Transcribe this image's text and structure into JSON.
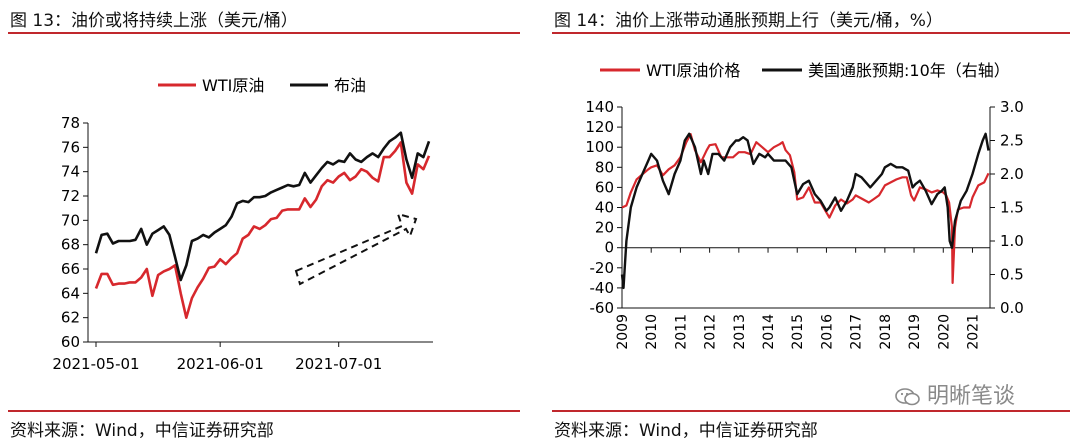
{
  "left_panel": {
    "title": "图 13：油价或将持续上涨（美元/桶）",
    "source": "资料来源：Wind，中信证券研究部"
  },
  "right_panel": {
    "title": "图 14：油价上涨带动通胀预期上行（美元/桶，%）",
    "source": "资料来源：Wind，中信证券研究部"
  },
  "watermark": {
    "text": "明晰笔谈",
    "icon": "wechat-icon"
  },
  "colors": {
    "wti": "#d7282d",
    "brent": "#111111",
    "rule": "#c0282d",
    "arrow": "#111111"
  },
  "chart_data": [
    {
      "type": "line",
      "legend_position": "top",
      "x_tick_labels": [
        "2021-05-01",
        "2021-06-01",
        "2021-07-01"
      ],
      "ylim": [
        60,
        78
      ],
      "y_ticks": [
        60,
        62,
        64,
        66,
        68,
        70,
        72,
        74,
        76,
        78
      ],
      "x_count": 60,
      "x_tick_index": [
        0,
        22,
        43
      ],
      "annotations": [
        "dashed-upward-arrow"
      ],
      "series": [
        {
          "name": "WTI原油",
          "color": "#d7282d",
          "values": [
            64.4,
            65.6,
            65.6,
            64.7,
            64.8,
            64.8,
            64.9,
            64.9,
            65.3,
            66.0,
            63.8,
            65.5,
            65.8,
            66.0,
            66.3,
            64.0,
            62.0,
            63.6,
            64.5,
            65.2,
            66.1,
            66.2,
            66.8,
            66.4,
            66.9,
            67.3,
            68.5,
            68.8,
            69.5,
            69.3,
            69.6,
            70.1,
            70.2,
            70.8,
            70.9,
            70.9,
            70.9,
            71.8,
            71.1,
            71.7,
            72.8,
            73.3,
            73.1,
            73.6,
            73.9,
            73.3,
            73.6,
            74.2,
            74.0,
            73.5,
            73.2,
            75.2,
            75.2,
            75.7,
            76.4,
            73.1,
            72.2,
            74.6,
            74.2,
            75.3
          ]
        },
        {
          "name": "布油",
          "color": "#111111",
          "values": [
            67.3,
            68.8,
            68.9,
            68.1,
            68.3,
            68.3,
            68.3,
            68.4,
            69.3,
            68.0,
            68.9,
            69.2,
            69.5,
            68.8,
            67.0,
            65.1,
            66.3,
            68.3,
            68.5,
            68.8,
            68.6,
            69.0,
            69.3,
            69.6,
            70.3,
            71.4,
            71.6,
            71.5,
            71.9,
            71.9,
            72.0,
            72.3,
            72.5,
            72.7,
            72.9,
            72.8,
            72.9,
            73.9,
            73.1,
            73.7,
            74.3,
            74.8,
            74.6,
            74.9,
            74.8,
            75.5,
            75.0,
            74.8,
            75.2,
            75.5,
            75.2,
            75.9,
            76.5,
            76.8,
            77.2,
            75.0,
            73.5,
            75.5,
            75.2,
            76.5
          ]
        }
      ]
    },
    {
      "type": "line",
      "legend_position": "top",
      "x_tick_labels": [
        "2009",
        "2010",
        "2011",
        "2012",
        "2013",
        "2014",
        "2015",
        "2016",
        "2017",
        "2018",
        "2019",
        "2020",
        "2021"
      ],
      "xlim": [
        2009,
        2021.6
      ],
      "ylim": [
        -60,
        140
      ],
      "y_ticks": [
        -60,
        -40,
        -20,
        0,
        20,
        40,
        60,
        80,
        100,
        120,
        140
      ],
      "y2lim": [
        0.0,
        3.0
      ],
      "y2_ticks": [
        "0.0",
        "0.5",
        "1.0",
        "1.5",
        "2.0",
        "2.5",
        "3.0"
      ],
      "series": [
        {
          "name": "WTI原油价格",
          "axis": "left",
          "color": "#d7282d",
          "x": [
            2009.0,
            2009.15,
            2009.3,
            2009.5,
            2009.7,
            2009.9,
            2010.0,
            2010.2,
            2010.4,
            2010.6,
            2010.8,
            2011.0,
            2011.2,
            2011.35,
            2011.5,
            2011.7,
            2011.9,
            2012.0,
            2012.2,
            2012.4,
            2012.6,
            2012.8,
            2013.0,
            2013.2,
            2013.4,
            2013.6,
            2013.8,
            2014.0,
            2014.2,
            2014.4,
            2014.5,
            2014.6,
            2014.75,
            2014.9,
            2015.0,
            2015.2,
            2015.4,
            2015.6,
            2015.8,
            2016.0,
            2016.1,
            2016.3,
            2016.5,
            2016.7,
            2016.9,
            2017.0,
            2017.2,
            2017.45,
            2017.6,
            2017.8,
            2018.0,
            2018.2,
            2018.4,
            2018.6,
            2018.75,
            2018.9,
            2019.0,
            2019.2,
            2019.4,
            2019.6,
            2019.8,
            2020.0,
            2020.1,
            2020.2,
            2020.3,
            2020.32,
            2020.4,
            2020.5,
            2020.7,
            2020.9,
            2021.0,
            2021.2,
            2021.4,
            2021.55
          ],
          "values": [
            40,
            42,
            55,
            68,
            73,
            78,
            80,
            82,
            72,
            78,
            82,
            90,
            105,
            113,
            97,
            85,
            97,
            102,
            103,
            90,
            90,
            90,
            95,
            95,
            93,
            105,
            100,
            95,
            100,
            103,
            105,
            97,
            92,
            75,
            48,
            50,
            60,
            45,
            45,
            35,
            30,
            42,
            48,
            44,
            48,
            52,
            49,
            45,
            48,
            52,
            62,
            65,
            68,
            70,
            70,
            52,
            47,
            60,
            58,
            55,
            57,
            55,
            52,
            45,
            20,
            -35,
            20,
            38,
            40,
            40,
            50,
            62,
            65,
            74
          ]
        },
        {
          "name": "美国通胀预期:10年（右轴）",
          "axis": "right",
          "color": "#111111",
          "x": [
            2009.0,
            2009.05,
            2009.15,
            2009.3,
            2009.5,
            2009.7,
            2009.9,
            2010.0,
            2010.2,
            2010.4,
            2010.6,
            2010.8,
            2011.0,
            2011.15,
            2011.3,
            2011.5,
            2011.7,
            2011.8,
            2011.95,
            2012.1,
            2012.3,
            2012.5,
            2012.7,
            2012.9,
            2013.0,
            2013.15,
            2013.3,
            2013.5,
            2013.7,
            2013.9,
            2014.0,
            2014.2,
            2014.4,
            2014.6,
            2014.8,
            2015.0,
            2015.2,
            2015.4,
            2015.6,
            2015.8,
            2016.0,
            2016.1,
            2016.3,
            2016.5,
            2016.7,
            2016.9,
            2017.0,
            2017.2,
            2017.5,
            2017.7,
            2017.9,
            2018.0,
            2018.2,
            2018.4,
            2018.6,
            2018.8,
            2018.95,
            2019.05,
            2019.2,
            2019.4,
            2019.6,
            2019.8,
            2019.95,
            2020.05,
            2020.15,
            2020.22,
            2020.3,
            2020.4,
            2020.6,
            2020.8,
            2021.0,
            2021.2,
            2021.35,
            2021.45,
            2021.55
          ],
          "values": [
            0.5,
            0.3,
            1.0,
            1.5,
            1.8,
            2.0,
            2.2,
            2.3,
            2.2,
            1.9,
            1.7,
            2.0,
            2.2,
            2.5,
            2.6,
            2.4,
            2.0,
            2.2,
            2.0,
            2.3,
            2.3,
            2.2,
            2.4,
            2.5,
            2.5,
            2.55,
            2.5,
            2.15,
            2.3,
            2.25,
            2.3,
            2.2,
            2.2,
            2.2,
            2.1,
            1.7,
            1.85,
            1.9,
            1.7,
            1.6,
            1.45,
            1.5,
            1.65,
            1.45,
            1.6,
            1.8,
            2.0,
            1.95,
            1.8,
            1.9,
            2.0,
            2.1,
            2.15,
            2.1,
            2.1,
            2.05,
            1.8,
            1.85,
            1.9,
            1.75,
            1.55,
            1.7,
            1.75,
            1.8,
            1.5,
            1.0,
            0.9,
            1.3,
            1.6,
            1.75,
            2.0,
            2.3,
            2.5,
            2.6,
            2.35
          ]
        }
      ]
    }
  ]
}
